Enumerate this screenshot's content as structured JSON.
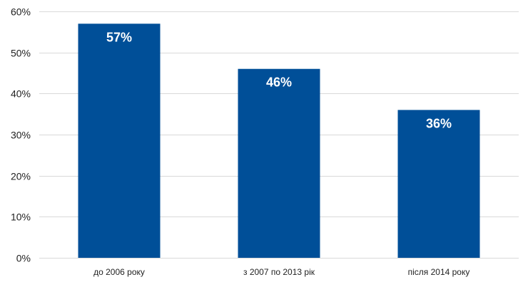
{
  "chart_data": {
    "type": "bar",
    "categories": [
      "до 2006 року",
      "з 2007 по 2013 рік",
      "після 2014 року"
    ],
    "values": [
      57,
      46,
      36
    ],
    "data_labels": [
      "57%",
      "46%",
      "36%"
    ],
    "y_ticks": [
      0,
      10,
      20,
      30,
      40,
      50,
      60
    ],
    "y_tick_labels": [
      "0%",
      "10%",
      "20%",
      "30%",
      "40%",
      "50%",
      "60%"
    ],
    "ylim": [
      0,
      60
    ],
    "grid": true,
    "legend": "none",
    "colors": {
      "bar": "#004f98",
      "grid": "#d9d9d9"
    }
  }
}
